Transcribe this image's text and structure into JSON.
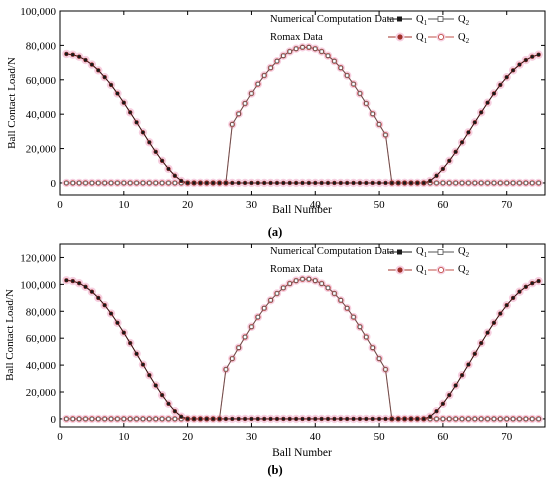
{
  "figure": {
    "background": "#ffffff",
    "colors": {
      "numerical_q1": "#1a1a1a",
      "numerical_q2": "#555555",
      "romax_q1": "#a0302a",
      "romax_q2": "#c0504a",
      "romax_halo": "#f6cfe0",
      "axis": "#000000"
    }
  },
  "chart_data": [
    {
      "panel_label": "(a)",
      "type": "line",
      "xlabel": "Ball Number",
      "ylabel": "Ball Contact Load/N",
      "xlim": [
        0,
        76
      ],
      "ylim": [
        -7000,
        100000
      ],
      "x_ticks": [
        0,
        10,
        20,
        30,
        40,
        50,
        60,
        70
      ],
      "y_ticks": [
        0,
        20000,
        40000,
        60000,
        80000,
        100000
      ],
      "x_tick_labels": [
        "0",
        "10",
        "20",
        "30",
        "40",
        "50",
        "60",
        "70"
      ],
      "y_tick_labels": [
        "0",
        "20,000",
        "40,000",
        "60,000",
        "80,000",
        "100,000"
      ],
      "grid": false,
      "legend_position": "top-right",
      "legend": {
        "numerical_label": "Numerical Computation Data",
        "romax_label": "Romax Data",
        "q1_label": "Q",
        "q1_sub": "1",
        "q2_label": "Q",
        "q2_sub": "2"
      },
      "balls": 75,
      "q1_curve": {
        "peak": 75000,
        "zero_start": 26,
        "zero_end": 52,
        "exponent": 1.5
      },
      "q2_curve": {
        "peak": 79000,
        "zero_start": 26,
        "zero_end": 52,
        "exponent": 1.5
      },
      "series": [
        {
          "name": "Q1",
          "group": "Numerical Computation Data",
          "marker": "filled-square"
        },
        {
          "name": "Q2",
          "group": "Numerical Computation Data",
          "marker": "open-square"
        },
        {
          "name": "Q1",
          "group": "Romax Data",
          "marker": "filled-circle"
        },
        {
          "name": "Q2",
          "group": "Romax Data",
          "marker": "open-circle"
        }
      ]
    },
    {
      "panel_label": "(b)",
      "type": "line",
      "xlabel": "Ball Number",
      "ylabel": "Ball Contact Load/N",
      "xlim": [
        0,
        76
      ],
      "ylim": [
        -6000,
        130000
      ],
      "x_ticks": [
        0,
        10,
        20,
        30,
        40,
        50,
        60,
        70
      ],
      "y_ticks": [
        0,
        20000,
        40000,
        60000,
        80000,
        100000,
        120000
      ],
      "x_tick_labels": [
        "0",
        "10",
        "20",
        "30",
        "40",
        "50",
        "60",
        "70"
      ],
      "y_tick_labels": [
        "0",
        "20,000",
        "40,000",
        "60,000",
        "80,000",
        "100,000",
        "120,000"
      ],
      "grid": false,
      "legend_position": "top-right",
      "legend": {
        "numerical_label": "Numerical Computation Data",
        "romax_label": "Romax Data",
        "q1_label": "Q",
        "q1_sub": "1",
        "q2_label": "Q",
        "q2_sub": "2"
      },
      "balls": 75,
      "q1_curve": {
        "peak": 103000,
        "zero_start": 24,
        "zero_end": 53,
        "exponent": 1.5
      },
      "q2_curve": {
        "peak": 104000,
        "zero_start": 25,
        "zero_end": 52,
        "exponent": 1.5
      },
      "series": [
        {
          "name": "Q1",
          "group": "Numerical Computation Data",
          "marker": "filled-square"
        },
        {
          "name": "Q2",
          "group": "Numerical Computation Data",
          "marker": "open-square"
        },
        {
          "name": "Q1",
          "group": "Romax Data",
          "marker": "filled-circle"
        },
        {
          "name": "Q2",
          "group": "Romax Data",
          "marker": "open-circle"
        }
      ]
    }
  ]
}
